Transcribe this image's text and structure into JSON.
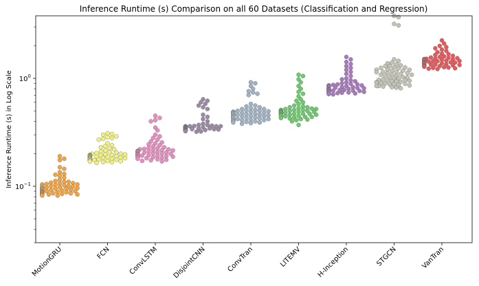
{
  "chart_data": {
    "type": "scatter",
    "title": "Inference Runtime (s) Comparison on all 60 Datasets (Classification and Regression)",
    "xlabel": "",
    "ylabel": "Inference Runtime (s) in Log Scale",
    "yscale": "log",
    "ylim": [
      0.03,
      3.8
    ],
    "yticks": [
      {
        "value": 0.1,
        "base": "10",
        "exp": "−1"
      },
      {
        "value": 1,
        "base": "10",
        "exp": "0"
      }
    ],
    "categories": [
      "MotionGRU",
      "FCN",
      "ConvLSTM",
      "DisjointCNN",
      "ConvTran",
      "LITEMV",
      "H-Inception",
      "STGCN",
      "VanTran"
    ],
    "series": [
      {
        "name": "MotionGRU",
        "color": "#f5a33c",
        "values": [
          0.19,
          0.18,
          0.175,
          0.15,
          0.145,
          0.135,
          0.13,
          0.128,
          0.125,
          0.12,
          0.115,
          0.112,
          0.11,
          0.108,
          0.106,
          0.105,
          0.104,
          0.103,
          0.102,
          0.1,
          0.099,
          0.098,
          0.097,
          0.096,
          0.095,
          0.095,
          0.094,
          0.093,
          0.092,
          0.091,
          0.09,
          0.09,
          0.089,
          0.088,
          0.088,
          0.087,
          0.086,
          0.086,
          0.085,
          0.085,
          0.084,
          0.084,
          0.083,
          0.083,
          0.082,
          0.082,
          0.1,
          0.097,
          0.093,
          0.09,
          0.087,
          0.084,
          0.101,
          0.096,
          0.092,
          0.089,
          0.086,
          0.11,
          0.107,
          0.104
        ]
      },
      {
        "name": "FCN",
        "color": "#f2f27a",
        "values": [
          0.31,
          0.305,
          0.3,
          0.29,
          0.285,
          0.28,
          0.275,
          0.27,
          0.25,
          0.24,
          0.235,
          0.23,
          0.225,
          0.22,
          0.215,
          0.21,
          0.207,
          0.205,
          0.203,
          0.2,
          0.198,
          0.196,
          0.195,
          0.194,
          0.192,
          0.19,
          0.189,
          0.188,
          0.186,
          0.185,
          0.184,
          0.182,
          0.181,
          0.18,
          0.179,
          0.178,
          0.176,
          0.175,
          0.173,
          0.172,
          0.17,
          0.168,
          0.167,
          0.165,
          0.2,
          0.197,
          0.193,
          0.19,
          0.187,
          0.183,
          0.18,
          0.177,
          0.174,
          0.171,
          0.195,
          0.191,
          0.186,
          0.182,
          0.178,
          0.174
        ]
      },
      {
        "name": "ConvLSTM",
        "color": "#e98cc0",
        "values": [
          0.45,
          0.43,
          0.41,
          0.4,
          0.35,
          0.33,
          0.3,
          0.29,
          0.28,
          0.27,
          0.26,
          0.255,
          0.25,
          0.245,
          0.24,
          0.235,
          0.23,
          0.227,
          0.225,
          0.222,
          0.22,
          0.218,
          0.215,
          0.213,
          0.21,
          0.208,
          0.206,
          0.204,
          0.202,
          0.2,
          0.198,
          0.196,
          0.194,
          0.192,
          0.19,
          0.188,
          0.186,
          0.184,
          0.182,
          0.18,
          0.178,
          0.176,
          0.174,
          0.172,
          0.17,
          0.22,
          0.216,
          0.212,
          0.208,
          0.204,
          0.2,
          0.196,
          0.192,
          0.188,
          0.184,
          0.21,
          0.205,
          0.2,
          0.195,
          0.19
        ]
      },
      {
        "name": "DisjointCNN",
        "color": "#9b8aa6",
        "values": [
          0.64,
          0.62,
          0.6,
          0.58,
          0.56,
          0.54,
          0.52,
          0.46,
          0.44,
          0.42,
          0.4,
          0.38,
          0.37,
          0.365,
          0.36,
          0.355,
          0.35,
          0.348,
          0.345,
          0.342,
          0.34,
          0.338,
          0.336,
          0.334,
          0.332,
          0.33,
          0.328,
          0.326,
          0.324,
          0.322,
          0.32,
          0.36,
          0.358,
          0.354,
          0.35,
          0.346,
          0.342,
          0.338,
          0.334,
          0.33,
          0.326,
          0.36,
          0.352,
          0.344,
          0.336,
          0.328,
          0.37,
          0.36,
          0.35,
          0.34,
          0.33,
          0.356,
          0.348,
          0.34,
          0.332,
          0.325,
          0.362,
          0.351,
          0.343,
          0.331
        ]
      },
      {
        "name": "ConvTran",
        "color": "#9fb3c4",
        "values": [
          0.92,
          0.9,
          0.85,
          0.8,
          0.76,
          0.74,
          0.72,
          0.7,
          0.58,
          0.56,
          0.55,
          0.54,
          0.53,
          0.52,
          0.51,
          0.5,
          0.495,
          0.49,
          0.485,
          0.48,
          0.475,
          0.47,
          0.465,
          0.46,
          0.455,
          0.45,
          0.445,
          0.44,
          0.435,
          0.43,
          0.425,
          0.42,
          0.415,
          0.41,
          0.405,
          0.4,
          0.395,
          0.39,
          0.385,
          0.38,
          0.5,
          0.49,
          0.48,
          0.47,
          0.46,
          0.45,
          0.44,
          0.43,
          0.42,
          0.41,
          0.4,
          0.39,
          0.52,
          0.505,
          0.49,
          0.475,
          0.46,
          0.445,
          0.43,
          0.415
        ]
      },
      {
        "name": "LITEMV",
        "color": "#6ccb6c",
        "values": [
          1.08,
          1.05,
          0.98,
          0.92,
          0.85,
          0.8,
          0.75,
          0.72,
          0.68,
          0.64,
          0.62,
          0.6,
          0.58,
          0.56,
          0.55,
          0.54,
          0.53,
          0.52,
          0.51,
          0.5,
          0.495,
          0.49,
          0.485,
          0.48,
          0.475,
          0.47,
          0.465,
          0.46,
          0.455,
          0.45,
          0.445,
          0.44,
          0.435,
          0.43,
          0.425,
          0.42,
          0.415,
          0.41,
          0.4,
          0.37,
          0.5,
          0.49,
          0.48,
          0.47,
          0.46,
          0.45,
          0.44,
          0.43,
          0.52,
          0.51,
          0.5,
          0.49,
          0.48,
          0.47,
          0.46,
          0.54,
          0.525,
          0.51,
          0.495,
          0.48
        ]
      },
      {
        "name": "H-Inception",
        "color": "#a979bf",
        "values": [
          1.58,
          1.5,
          1.42,
          1.36,
          1.3,
          1.25,
          1.2,
          1.15,
          1.1,
          1.05,
          1.0,
          0.98,
          0.96,
          0.94,
          0.92,
          0.9,
          0.89,
          0.88,
          0.87,
          0.86,
          0.85,
          0.84,
          0.83,
          0.82,
          0.81,
          0.8,
          0.795,
          0.79,
          0.785,
          0.78,
          0.775,
          0.77,
          0.765,
          0.76,
          0.755,
          0.75,
          0.745,
          0.74,
          0.735,
          0.73,
          0.725,
          0.72,
          0.715,
          0.71,
          0.86,
          0.845,
          0.83,
          0.815,
          0.8,
          0.785,
          0.77,
          0.755,
          0.74,
          0.88,
          0.86,
          0.84,
          0.82,
          0.8,
          0.78,
          0.76
        ]
      },
      {
        "name": "STGCN",
        "color": "#c4c4b6",
        "values": [
          3.8,
          3.7,
          3.2,
          3.1,
          1.5,
          1.45,
          1.4,
          1.38,
          1.35,
          1.3,
          1.25,
          1.2,
          1.18,
          1.15,
          1.12,
          1.1,
          1.08,
          1.05,
          1.02,
          1.0,
          0.98,
          0.96,
          0.95,
          0.94,
          0.93,
          0.92,
          0.91,
          0.9,
          0.89,
          0.88,
          0.87,
          0.86,
          0.85,
          0.84,
          0.83,
          0.82,
          0.81,
          1.3,
          1.27,
          1.24,
          1.21,
          1.18,
          1.15,
          1.12,
          1.09,
          1.06,
          1.03,
          1.0,
          0.97,
          0.94,
          0.91,
          0.88,
          0.85,
          1.32,
          1.26,
          1.2,
          1.14,
          1.08,
          1.02,
          0.96
        ]
      },
      {
        "name": "VanTran",
        "color": "#e8585a",
        "values": [
          2.25,
          2.1,
          2.0,
          1.95,
          1.9,
          1.85,
          1.8,
          1.75,
          1.7,
          1.68,
          1.65,
          1.62,
          1.6,
          1.58,
          1.56,
          1.55,
          1.54,
          1.53,
          1.52,
          1.51,
          1.5,
          1.49,
          1.48,
          1.47,
          1.46,
          1.45,
          1.44,
          1.43,
          1.42,
          1.41,
          1.4,
          1.39,
          1.38,
          1.37,
          1.36,
          1.35,
          1.34,
          1.33,
          1.32,
          1.31,
          1.3,
          1.29,
          1.28,
          1.27,
          1.26,
          1.25,
          1.24,
          1.23,
          1.22,
          1.5,
          1.48,
          1.46,
          1.44,
          1.42,
          1.4,
          1.38,
          1.36,
          1.34,
          1.32,
          1.3
        ]
      }
    ]
  }
}
